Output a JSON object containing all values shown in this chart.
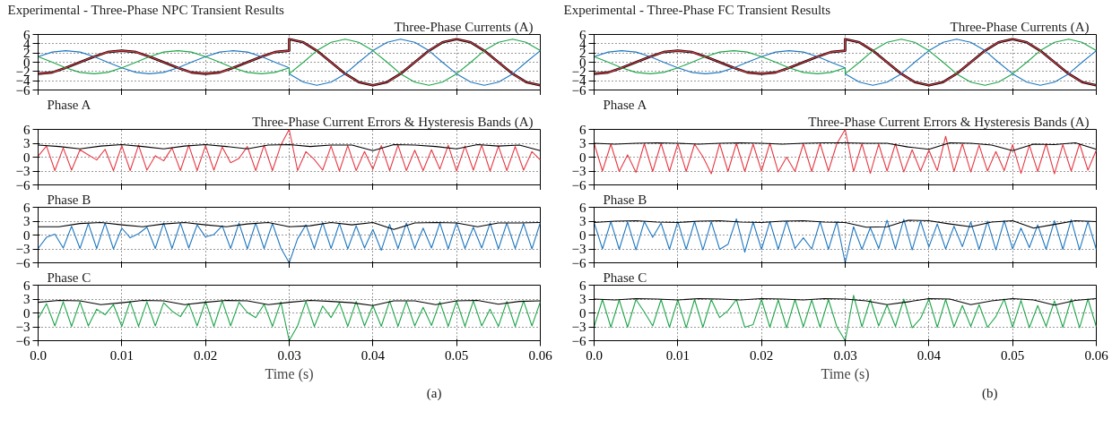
{
  "chart_data": [
    {
      "type": "line",
      "title": "Experimental - Three-Phase NPC Transient Results",
      "subtitle": "Three-Phase Currents (A)",
      "x": [
        0,
        0.0017,
        0.0033,
        0.005,
        0.0067,
        0.0083,
        0.01,
        0.0117,
        0.0133,
        0.015,
        0.0167,
        0.0183,
        0.02,
        0.0217,
        0.0233,
        0.025,
        0.0267,
        0.0283,
        0.03,
        0.03,
        0.0317,
        0.0333,
        0.035,
        0.0367,
        0.0383,
        0.04,
        0.0417,
        0.0433,
        0.045,
        0.0467,
        0.0483,
        0.05,
        0.0517,
        0.0533,
        0.055,
        0.0567,
        0.0583,
        0.06
      ],
      "series": [
        {
          "color": "#000000",
          "values": [
            -2.5,
            -2.2,
            -1.2,
            0,
            1.2,
            2.2,
            2.5,
            2.2,
            1.2,
            0,
            -1.2,
            -2.2,
            -2.5,
            -2.2,
            -1.2,
            0,
            1.2,
            2.2,
            2.5,
            5,
            4.3,
            2.5,
            0,
            -2.5,
            -4.3,
            -5,
            -4.3,
            -2.5,
            0,
            2.5,
            4.3,
            5,
            4.3,
            2.5,
            0,
            -2.5,
            -4.3,
            -5
          ]
        },
        {
          "color": "#1f78c1",
          "values": [
            1.2,
            2.2,
            2.5,
            2.2,
            1.2,
            0,
            -1.2,
            -2.2,
            -2.5,
            -2.2,
            -1.2,
            0,
            1.2,
            2.2,
            2.5,
            2.2,
            1.2,
            0,
            -1.2,
            -2.5,
            -4.3,
            -5,
            -4.3,
            -2.5,
            0,
            2.5,
            4.3,
            5,
            4.3,
            2.5,
            0,
            -2.5,
            -4.3,
            -5,
            -4.3,
            -2.5,
            0,
            2.5
          ]
        },
        {
          "color": "#1fa64a",
          "values": [
            1.2,
            0,
            -1.2,
            -2.2,
            -2.5,
            -2.2,
            -1.2,
            0,
            1.2,
            2.2,
            2.5,
            2.2,
            1.2,
            0,
            -1.2,
            -2.2,
            -2.5,
            -2.2,
            -1.2,
            -2.5,
            0,
            2.5,
            4.3,
            5,
            4.3,
            2.5,
            0,
            -2.5,
            -4.3,
            -5,
            -4.3,
            -2.5,
            0,
            2.5,
            4.3,
            5,
            4.3,
            2.5
          ]
        },
        {
          "color": "#e83a45",
          "values": [
            -2.5,
            -2.2,
            -1.2,
            0,
            1.2,
            2.2,
            2.5,
            2.2,
            1.2,
            0,
            -1.2,
            -2.2,
            -2.5,
            -2.2,
            -1.2,
            0,
            1.2,
            2.2,
            2.5,
            5,
            4.3,
            2.5,
            0,
            -2.5,
            -4.3,
            -5,
            -4.3,
            -2.5,
            0,
            2.5,
            4.3,
            5,
            4.3,
            2.5,
            0,
            -2.5,
            -4.3,
            -5
          ]
        }
      ],
      "xlim": [
        0,
        0.06
      ],
      "xticks": [
        0,
        0.01,
        0.02,
        0.03,
        0.04,
        0.05,
        0.06
      ],
      "ylim": [
        -6,
        6
      ],
      "yticks": [
        -6,
        -4,
        -2,
        0,
        2,
        4,
        6
      ],
      "grid": true,
      "tick_labels": "y"
    },
    {
      "type": "line",
      "title": "Phase A",
      "subtitle": "Three-Phase Current Errors & Hysteresis Bands (A)",
      "x": [
        0,
        0.001,
        0.002,
        0.003,
        0.004,
        0.005,
        0.006,
        0.007,
        0.008,
        0.009,
        0.01,
        0.011,
        0.012,
        0.013,
        0.014,
        0.015,
        0.016,
        0.017,
        0.018,
        0.019,
        0.02,
        0.021,
        0.022,
        0.023,
        0.024,
        0.025,
        0.026,
        0.027,
        0.028,
        0.029,
        0.03,
        0.031,
        0.032,
        0.033,
        0.034,
        0.035,
        0.036,
        0.037,
        0.038,
        0.039,
        0.04,
        0.041,
        0.042,
        0.043,
        0.044,
        0.045,
        0.046,
        0.047,
        0.048,
        0.049,
        0.05,
        0.051,
        0.052,
        0.053,
        0.054,
        0.055,
        0.056,
        0.057,
        0.058,
        0.059,
        0.06
      ],
      "series": [
        {
          "color": "#e83a45",
          "values": [
            0.2,
            2.4,
            -2.9,
            2.0,
            -2.8,
            1.6,
            0.5,
            -0.6,
            1.7,
            -2.9,
            2.5,
            -2.9,
            2.6,
            -2.8,
            0.3,
            -0.8,
            2.0,
            -2.9,
            2.6,
            -2.9,
            2.5,
            -2.8,
            2.2,
            -1.2,
            -0.3,
            2.3,
            -2.9,
            2.6,
            -2.9,
            2.6,
            6.0,
            -2.9,
            1.2,
            -0.5,
            -2.8,
            2.4,
            -3.0,
            2.5,
            -2.9,
            1.2,
            -2.6,
            2.5,
            -2.9,
            2.6,
            -2.9,
            1.5,
            -2.9,
            1.6,
            -2.6,
            2.6,
            -3.0,
            2.4,
            -2.8,
            2.6,
            -3.0,
            2.4,
            -2.9,
            2.3,
            -2.8,
            1.2,
            -0.6
          ]
        },
        {
          "color": "#000000",
          "x": [
            0,
            0.0025,
            0.005,
            0.0075,
            0.01,
            0.0125,
            0.015,
            0.0175,
            0.02,
            0.0225,
            0.025,
            0.0275,
            0.03,
            0.0325,
            0.035,
            0.0375,
            0.04,
            0.0425,
            0.045,
            0.0475,
            0.05,
            0.0525,
            0.055,
            0.0575,
            0.06
          ],
          "values": [
            2.6,
            2.3,
            1.8,
            2.4,
            2.7,
            2.3,
            1.8,
            2.4,
            2.7,
            2.3,
            1.8,
            2.6,
            2.7,
            2.3,
            2.6,
            2.6,
            1.4,
            2.7,
            2.6,
            2.3,
            1.8,
            2.7,
            2.4,
            2.6,
            1.4
          ]
        }
      ],
      "xlim": [
        0,
        0.06
      ],
      "xticks": [
        0,
        0.01,
        0.02,
        0.03,
        0.04,
        0.05,
        0.06
      ],
      "ylim": [
        -6,
        6
      ],
      "yticks": [
        -6,
        -3,
        0,
        3,
        6
      ],
      "grid": true,
      "tick_labels": "y"
    },
    {
      "type": "line",
      "title": "Phase B",
      "x": [
        0,
        0.001,
        0.002,
        0.003,
        0.004,
        0.005,
        0.006,
        0.007,
        0.008,
        0.009,
        0.01,
        0.011,
        0.012,
        0.013,
        0.014,
        0.015,
        0.016,
        0.017,
        0.018,
        0.019,
        0.02,
        0.021,
        0.022,
        0.023,
        0.024,
        0.025,
        0.026,
        0.027,
        0.028,
        0.029,
        0.03,
        0.031,
        0.032,
        0.033,
        0.034,
        0.035,
        0.036,
        0.037,
        0.038,
        0.039,
        0.04,
        0.041,
        0.042,
        0.043,
        0.044,
        0.045,
        0.046,
        0.047,
        0.048,
        0.049,
        0.05,
        0.051,
        0.052,
        0.053,
        0.054,
        0.055,
        0.056,
        0.057,
        0.058,
        0.059,
        0.06
      ],
      "series": [
        {
          "color": "#1f78c1",
          "values": [
            -2.9,
            -0.5,
            0.2,
            -2.8,
            1.9,
            -2.9,
            2.5,
            -2.9,
            2.6,
            -3.0,
            1.5,
            -0.6,
            0.3,
            1.7,
            -2.9,
            2.6,
            -2.9,
            2.6,
            -2.8,
            2.2,
            -0.4,
            0.1,
            2.0,
            -2.9,
            2.6,
            -3.0,
            2.6,
            -2.9,
            2.5,
            -2.8,
            -6.0,
            -0.8,
            2.2,
            -2.9,
            2.7,
            -2.9,
            2.5,
            -3.0,
            2.0,
            -2.8,
            1.2,
            -3.3,
            2.3,
            -2.9,
            2.6,
            -2.9,
            1.5,
            -2.8,
            2.6,
            -3.0,
            2.7,
            -2.9,
            1.7,
            -2.8,
            2.6,
            -3.0,
            2.6,
            -2.9,
            2.5,
            -3.0,
            2.7
          ]
        },
        {
          "color": "#000000",
          "x": [
            0,
            0.0025,
            0.005,
            0.0075,
            0.01,
            0.0125,
            0.015,
            0.0175,
            0.02,
            0.0225,
            0.025,
            0.0275,
            0.03,
            0.0325,
            0.035,
            0.0375,
            0.04,
            0.0425,
            0.045,
            0.0475,
            0.05,
            0.0525,
            0.055,
            0.0575,
            0.06
          ],
          "values": [
            1.8,
            1.8,
            2.5,
            2.7,
            2.2,
            1.8,
            2.4,
            2.7,
            2.2,
            1.8,
            2.4,
            2.7,
            1.8,
            2.0,
            2.7,
            2.2,
            2.7,
            1.2,
            2.6,
            2.7,
            2.6,
            1.8,
            2.6,
            2.6,
            2.7
          ]
        }
      ],
      "xlim": [
        0,
        0.06
      ],
      "xticks": [
        0,
        0.01,
        0.02,
        0.03,
        0.04,
        0.05,
        0.06
      ],
      "ylim": [
        -6,
        6
      ],
      "yticks": [
        -6,
        -3,
        0,
        3,
        6
      ],
      "grid": true,
      "tick_labels": "y"
    },
    {
      "type": "line",
      "title": "Phase C",
      "xlabel": "Time (s)",
      "annotations": [
        "(a)"
      ],
      "x": [
        0,
        0.001,
        0.002,
        0.003,
        0.004,
        0.005,
        0.006,
        0.007,
        0.008,
        0.009,
        0.01,
        0.011,
        0.012,
        0.013,
        0.014,
        0.015,
        0.016,
        0.017,
        0.018,
        0.019,
        0.02,
        0.021,
        0.022,
        0.023,
        0.024,
        0.025,
        0.026,
        0.027,
        0.028,
        0.029,
        0.03,
        0.031,
        0.032,
        0.033,
        0.034,
        0.035,
        0.036,
        0.037,
        0.038,
        0.039,
        0.04,
        0.041,
        0.042,
        0.043,
        0.044,
        0.045,
        0.046,
        0.047,
        0.048,
        0.049,
        0.05,
        0.051,
        0.052,
        0.053,
        0.054,
        0.055,
        0.056,
        0.057,
        0.058,
        0.059,
        0.06
      ],
      "series": [
        {
          "color": "#1fa64a",
          "values": [
            -1.2,
            2.0,
            -2.8,
            2.4,
            -2.9,
            2.4,
            -2.8,
            0.8,
            -0.4,
            1.8,
            -2.9,
            2.5,
            -2.9,
            2.4,
            -2.8,
            2.2,
            0.4,
            -0.8,
            2.0,
            -2.8,
            2.5,
            -2.9,
            2.6,
            -2.8,
            2.3,
            0.1,
            -1.0,
            1.9,
            -2.9,
            2.4,
            -6.0,
            -2.8,
            2.5,
            -2.9,
            1.5,
            -1.0,
            2.2,
            -2.9,
            2.5,
            -2.8,
            1.6,
            -2.9,
            2.6,
            -2.9,
            2.5,
            -2.8,
            1.2,
            -2.7,
            2.4,
            -2.9,
            2.6,
            -2.9,
            2.6,
            -2.8,
            0.8,
            -2.9,
            2.5,
            -2.9,
            2.6,
            -2.8,
            2.4
          ]
        },
        {
          "color": "#000000",
          "x": [
            0,
            0.0025,
            0.005,
            0.0075,
            0.01,
            0.0125,
            0.015,
            0.0175,
            0.02,
            0.0225,
            0.025,
            0.0275,
            0.03,
            0.0325,
            0.035,
            0.0375,
            0.04,
            0.0425,
            0.045,
            0.0475,
            0.05,
            0.0525,
            0.055,
            0.0575,
            0.06
          ],
          "values": [
            2.3,
            2.7,
            2.6,
            1.8,
            2.2,
            2.7,
            2.6,
            1.8,
            2.3,
            2.7,
            2.6,
            1.8,
            2.3,
            2.7,
            2.5,
            2.2,
            1.6,
            2.6,
            2.6,
            1.8,
            2.6,
            2.7,
            1.9,
            2.5,
            2.6
          ]
        }
      ],
      "xlim": [
        0,
        0.06
      ],
      "xticks": [
        {
          "value": 0,
          "label": "0.0"
        },
        0.01,
        0.02,
        0.03,
        0.04,
        0.05,
        0.06
      ],
      "ylim": [
        -6,
        6
      ],
      "yticks": [
        -6,
        -3,
        0,
        3,
        6
      ],
      "grid": true
    },
    {
      "type": "line",
      "title": "Experimental - Three-Phase FC Transient Results",
      "subtitle": "Three-Phase Currents (A)",
      "x": [
        0,
        0.0017,
        0.0033,
        0.005,
        0.0067,
        0.0083,
        0.01,
        0.0117,
        0.0133,
        0.015,
        0.0167,
        0.0183,
        0.02,
        0.0217,
        0.0233,
        0.025,
        0.0267,
        0.0283,
        0.03,
        0.03,
        0.0317,
        0.0333,
        0.035,
        0.0367,
        0.0383,
        0.04,
        0.0417,
        0.0433,
        0.045,
        0.0467,
        0.0483,
        0.05,
        0.0517,
        0.0533,
        0.055,
        0.0567,
        0.0583,
        0.06
      ],
      "series": [
        {
          "color": "#000000",
          "values": [
            -2.5,
            -2.2,
            -1.2,
            0,
            1.2,
            2.2,
            2.5,
            2.2,
            1.2,
            0,
            -1.2,
            -2.2,
            -2.5,
            -2.2,
            -1.2,
            0,
            1.2,
            2.2,
            2.5,
            5,
            4.3,
            2.5,
            0,
            -2.5,
            -4.3,
            -5,
            -4.3,
            -2.5,
            0,
            2.5,
            4.3,
            5,
            4.3,
            2.5,
            0,
            -2.5,
            -4.3,
            -5
          ]
        },
        {
          "color": "#1f78c1",
          "values": [
            1.2,
            2.2,
            2.5,
            2.2,
            1.2,
            0,
            -1.2,
            -2.2,
            -2.5,
            -2.2,
            -1.2,
            0,
            1.2,
            2.2,
            2.5,
            2.2,
            1.2,
            0,
            -1.2,
            -2.5,
            -4.3,
            -5,
            -4.3,
            -2.5,
            0,
            2.5,
            4.3,
            5,
            4.3,
            2.5,
            0,
            -2.5,
            -4.3,
            -5,
            -4.3,
            -2.5,
            0,
            2.5
          ]
        },
        {
          "color": "#1fa64a",
          "values": [
            1.2,
            0,
            -1.2,
            -2.2,
            -2.5,
            -2.2,
            -1.2,
            0,
            1.2,
            2.2,
            2.5,
            2.2,
            1.2,
            0,
            -1.2,
            -2.2,
            -2.5,
            -2.2,
            -1.2,
            -2.5,
            0,
            2.5,
            4.3,
            5,
            4.3,
            2.5,
            0,
            -2.5,
            -4.3,
            -5,
            -4.3,
            -2.5,
            0,
            2.5,
            4.3,
            5,
            4.3,
            2.5
          ]
        },
        {
          "color": "#e83a45",
          "values": [
            -2.5,
            -2.2,
            -1.2,
            0,
            1.2,
            2.2,
            2.5,
            2.2,
            1.2,
            0,
            -1.2,
            -2.2,
            -2.5,
            -2.2,
            -1.2,
            0,
            1.2,
            2.2,
            2.5,
            5,
            4.3,
            2.5,
            0,
            -2.5,
            -4.3,
            -5,
            -4.3,
            -2.5,
            0,
            2.5,
            4.3,
            5,
            4.3,
            2.5,
            0,
            -2.5,
            -4.3,
            -5
          ]
        }
      ],
      "xlim": [
        0,
        0.06
      ],
      "xticks": [
        0,
        0.01,
        0.02,
        0.03,
        0.04,
        0.05,
        0.06
      ],
      "ylim": [
        -6,
        6
      ],
      "yticks": [
        -6,
        -4,
        -2,
        0,
        2,
        4,
        6
      ],
      "grid": true,
      "tick_labels": "y"
    },
    {
      "type": "line",
      "title": "Phase A",
      "subtitle": "Three-Phase Current Errors & Hysteresis Bands (A)",
      "x": [
        0,
        0.001,
        0.002,
        0.003,
        0.004,
        0.005,
        0.006,
        0.007,
        0.008,
        0.009,
        0.01,
        0.011,
        0.012,
        0.013,
        0.014,
        0.015,
        0.016,
        0.017,
        0.018,
        0.019,
        0.02,
        0.021,
        0.022,
        0.023,
        0.024,
        0.025,
        0.026,
        0.027,
        0.028,
        0.029,
        0.03,
        0.031,
        0.032,
        0.033,
        0.034,
        0.035,
        0.036,
        0.037,
        0.038,
        0.039,
        0.04,
        0.041,
        0.042,
        0.043,
        0.044,
        0.045,
        0.046,
        0.047,
        0.048,
        0.049,
        0.05,
        0.051,
        0.052,
        0.053,
        0.054,
        0.055,
        0.056,
        0.057,
        0.058,
        0.059,
        0.06
      ],
      "series": [
        {
          "color": "#e83a45",
          "values": [
            3.0,
            -3.0,
            2.8,
            -3.1,
            0.5,
            -3.3,
            2.9,
            -3.1,
            3.0,
            -3.1,
            2.9,
            -3.1,
            2.8,
            0.1,
            -3.6,
            2.9,
            -3.1,
            3.0,
            -3.1,
            2.8,
            -3.0,
            3.0,
            -3.2,
            0.0,
            -3.1,
            2.9,
            -3.1,
            3.0,
            -3.0,
            2.9,
            6.0,
            -3.1,
            2.9,
            -3.5,
            2.8,
            -3.0,
            2.9,
            -3.2,
            1.6,
            -3.0,
            1.5,
            -2.9,
            4.5,
            -3.1,
            2.9,
            -3.2,
            2.6,
            -3.0,
            1.2,
            -2.9,
            2.7,
            -3.5,
            2.6,
            -3.1,
            2.9,
            -3.6,
            2.7,
            -3.0,
            2.9,
            -2.8,
            1.5
          ]
        },
        {
          "color": "#000000",
          "x": [
            0,
            0.0025,
            0.005,
            0.0075,
            0.01,
            0.0125,
            0.015,
            0.0175,
            0.02,
            0.0225,
            0.025,
            0.0275,
            0.03,
            0.0325,
            0.035,
            0.0375,
            0.04,
            0.0425,
            0.045,
            0.0475,
            0.05,
            0.0525,
            0.055,
            0.0575,
            0.06
          ],
          "values": [
            3.0,
            2.8,
            3.0,
            3.1,
            3.0,
            2.8,
            3.0,
            3.1,
            3.0,
            2.8,
            3.0,
            3.1,
            3.1,
            3.0,
            3.0,
            2.2,
            1.7,
            3.1,
            3.0,
            2.6,
            1.4,
            2.8,
            2.7,
            3.1,
            1.7
          ]
        }
      ],
      "xlim": [
        0,
        0.06
      ],
      "xticks": [
        0,
        0.01,
        0.02,
        0.03,
        0.04,
        0.05,
        0.06
      ],
      "ylim": [
        -6,
        6
      ],
      "yticks": [
        -6,
        -3,
        0,
        3,
        6
      ],
      "grid": true,
      "tick_labels": "y"
    },
    {
      "type": "line",
      "title": "Phase B",
      "x": [
        0,
        0.001,
        0.002,
        0.003,
        0.004,
        0.005,
        0.006,
        0.007,
        0.008,
        0.009,
        0.01,
        0.011,
        0.012,
        0.013,
        0.014,
        0.015,
        0.016,
        0.017,
        0.018,
        0.019,
        0.02,
        0.021,
        0.022,
        0.023,
        0.024,
        0.025,
        0.026,
        0.027,
        0.028,
        0.029,
        0.03,
        0.031,
        0.032,
        0.033,
        0.034,
        0.035,
        0.036,
        0.037,
        0.038,
        0.039,
        0.04,
        0.041,
        0.042,
        0.043,
        0.044,
        0.045,
        0.046,
        0.047,
        0.048,
        0.049,
        0.05,
        0.051,
        0.052,
        0.053,
        0.054,
        0.055,
        0.056,
        0.057,
        0.058,
        0.059,
        0.06
      ],
      "series": [
        {
          "color": "#1f78c1",
          "values": [
            2.7,
            -3.0,
            2.9,
            -3.1,
            2.8,
            -3.2,
            2.9,
            -0.5,
            2.6,
            -3.1,
            2.9,
            -3.1,
            2.9,
            -3.2,
            2.9,
            -3.1,
            -2.0,
            3.5,
            -3.7,
            2.8,
            -3.1,
            2.9,
            -3.1,
            3.0,
            -2.9,
            -0.6,
            -3.0,
            2.9,
            -3.1,
            2.9,
            -6.0,
            1.8,
            -3.1,
            1.6,
            -2.9,
            3.2,
            -3.0,
            3.4,
            -3.2,
            3.0,
            -2.6,
            2.4,
            -3.0,
            1.9,
            -2.5,
            2.8,
            -3.1,
            3.0,
            -3.2,
            3.1,
            -3.0,
            1.5,
            -2.7,
            2.2,
            -3.1,
            3.1,
            -3.1,
            3.3,
            -3.2,
            2.9,
            -3.1
          ]
        },
        {
          "color": "#000000",
          "x": [
            0,
            0.0025,
            0.005,
            0.0075,
            0.01,
            0.0125,
            0.015,
            0.0175,
            0.02,
            0.0225,
            0.025,
            0.0275,
            0.03,
            0.0325,
            0.035,
            0.0375,
            0.04,
            0.0425,
            0.045,
            0.0475,
            0.05,
            0.0525,
            0.055,
            0.0575,
            0.06
          ],
          "values": [
            2.7,
            3.0,
            3.1,
            2.8,
            2.7,
            3.0,
            3.1,
            2.8,
            2.7,
            3.0,
            3.1,
            2.8,
            2.7,
            1.7,
            1.8,
            3.2,
            3.1,
            2.4,
            1.8,
            2.8,
            3.1,
            1.5,
            2.3,
            3.1,
            2.9
          ]
        }
      ],
      "xlim": [
        0,
        0.06
      ],
      "xticks": [
        0,
        0.01,
        0.02,
        0.03,
        0.04,
        0.05,
        0.06
      ],
      "ylim": [
        -6,
        6
      ],
      "yticks": [
        -6,
        -3,
        0,
        3,
        6
      ],
      "grid": true,
      "tick_labels": "y"
    },
    {
      "type": "line",
      "title": "Phase C",
      "xlabel": "Time (s)",
      "annotations": [
        "(b)"
      ],
      "x": [
        0,
        0.001,
        0.002,
        0.003,
        0.004,
        0.005,
        0.006,
        0.007,
        0.008,
        0.009,
        0.01,
        0.011,
        0.012,
        0.013,
        0.014,
        0.015,
        0.016,
        0.017,
        0.018,
        0.019,
        0.02,
        0.021,
        0.022,
        0.023,
        0.024,
        0.025,
        0.026,
        0.027,
        0.028,
        0.029,
        0.03,
        0.031,
        0.032,
        0.033,
        0.034,
        0.035,
        0.036,
        0.037,
        0.038,
        0.039,
        0.04,
        0.041,
        0.042,
        0.043,
        0.044,
        0.045,
        0.046,
        0.047,
        0.048,
        0.049,
        0.05,
        0.051,
        0.052,
        0.053,
        0.054,
        0.055,
        0.056,
        0.057,
        0.058,
        0.059,
        0.06
      ],
      "series": [
        {
          "color": "#1fa64a",
          "values": [
            -3.0,
            2.9,
            -3.1,
            2.8,
            -3.1,
            2.9,
            0.2,
            -2.8,
            2.9,
            -3.1,
            2.8,
            -3.2,
            2.9,
            -3.1,
            2.9,
            -1.0,
            0.5,
            2.9,
            -3.1,
            -2.5,
            2.9,
            -3.1,
            2.8,
            -3.2,
            2.9,
            -3.0,
            2.8,
            -3.1,
            2.9,
            -3.0,
            -6.0,
            3.8,
            -3.0,
            2.9,
            -2.8,
            1.7,
            -2.9,
            3.0,
            -3.2,
            -1.2,
            3.0,
            -3.1,
            2.9,
            -3.0,
            1.6,
            -2.9,
            1.8,
            -3.1,
            -0.8,
            3.0,
            -3.1,
            2.7,
            -3.2,
            1.6,
            -2.9,
            2.6,
            -3.1,
            3.0,
            -3.2,
            3.0,
            -3.0
          ]
        },
        {
          "color": "#000000",
          "x": [
            0,
            0.0025,
            0.005,
            0.0075,
            0.01,
            0.0125,
            0.015,
            0.0175,
            0.02,
            0.0225,
            0.025,
            0.0275,
            0.03,
            0.0325,
            0.035,
            0.0375,
            0.04,
            0.0425,
            0.045,
            0.0475,
            0.05,
            0.0525,
            0.055,
            0.0575,
            0.06
          ],
          "values": [
            3.0,
            2.8,
            3.1,
            3.0,
            2.8,
            3.1,
            3.0,
            2.8,
            3.1,
            3.0,
            2.8,
            3.1,
            3.0,
            2.6,
            1.8,
            2.4,
            3.1,
            3.0,
            1.8,
            2.6,
            3.1,
            2.8,
            1.7,
            2.7,
            3.1
          ]
        }
      ],
      "xlim": [
        0,
        0.06
      ],
      "xticks": [
        {
          "value": 0,
          "label": "0.0"
        },
        0.01,
        0.02,
        0.03,
        0.04,
        0.05,
        0.06
      ],
      "ylim": [
        -6,
        6
      ],
      "yticks": [
        -6,
        -3,
        0,
        3,
        6
      ],
      "grid": true
    }
  ]
}
